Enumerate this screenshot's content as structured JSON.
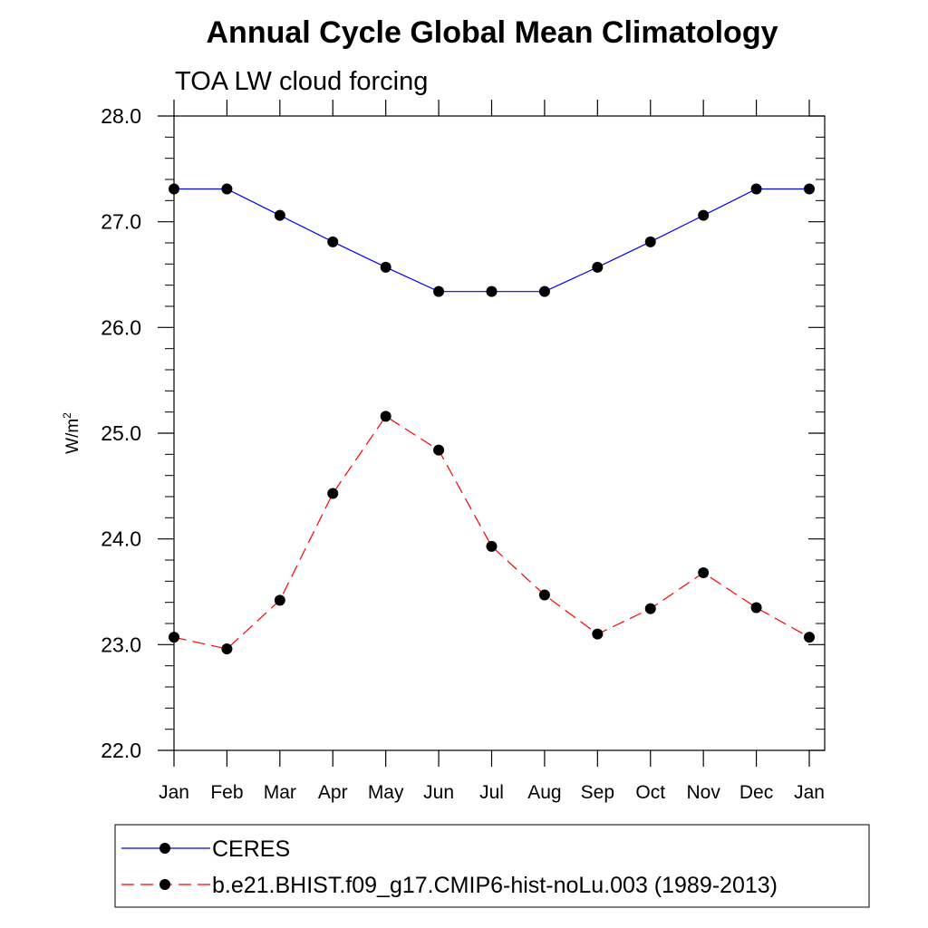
{
  "chart_data": {
    "type": "line",
    "title": "Annual Cycle Global Mean Climatology",
    "subtitle": "TOA LW cloud forcing",
    "xlabel": "",
    "ylabel": "W/m",
    "ylabel_superscript": "2",
    "ylim": [
      22.0,
      28.0
    ],
    "yticks": [
      "22.0",
      "23.0",
      "24.0",
      "25.0",
      "26.0",
      "27.0",
      "28.0"
    ],
    "categories": [
      "Jan",
      "Feb",
      "Mar",
      "Apr",
      "May",
      "Jun",
      "Jul",
      "Aug",
      "Sep",
      "Oct",
      "Nov",
      "Dec",
      "Jan"
    ],
    "series": [
      {
        "name": "CERES",
        "color": "#0000ff",
        "dash": "solid",
        "values": [
          27.31,
          27.31,
          27.06,
          26.81,
          26.57,
          26.34,
          26.34,
          26.34,
          26.57,
          26.81,
          27.06,
          27.31,
          27.31
        ]
      },
      {
        "name": "b.e21.BHIST.f09_g17.CMIP6-hist-noLu.003 (1989-2013)",
        "color": "#ff0000",
        "dash": "dashed",
        "values": [
          23.07,
          22.96,
          23.42,
          24.43,
          25.16,
          24.84,
          23.93,
          23.47,
          23.1,
          23.34,
          23.68,
          23.35,
          23.07
        ]
      }
    ]
  }
}
